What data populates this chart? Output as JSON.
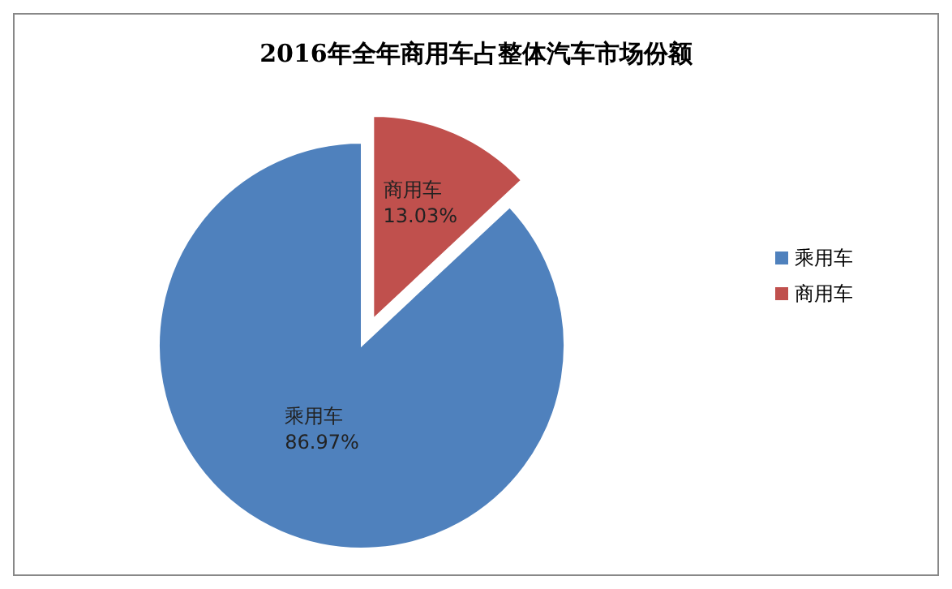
{
  "chart_data": {
    "type": "pie",
    "title": "2016年全年商用车占整体汽车市场份额",
    "categories": [
      "乘用车",
      "商用车"
    ],
    "values": [
      86.97,
      13.03
    ],
    "colors": [
      "#4f81bd",
      "#c0504d"
    ],
    "value_labels": [
      "86.97%",
      "13.03%"
    ],
    "legend": "right"
  }
}
